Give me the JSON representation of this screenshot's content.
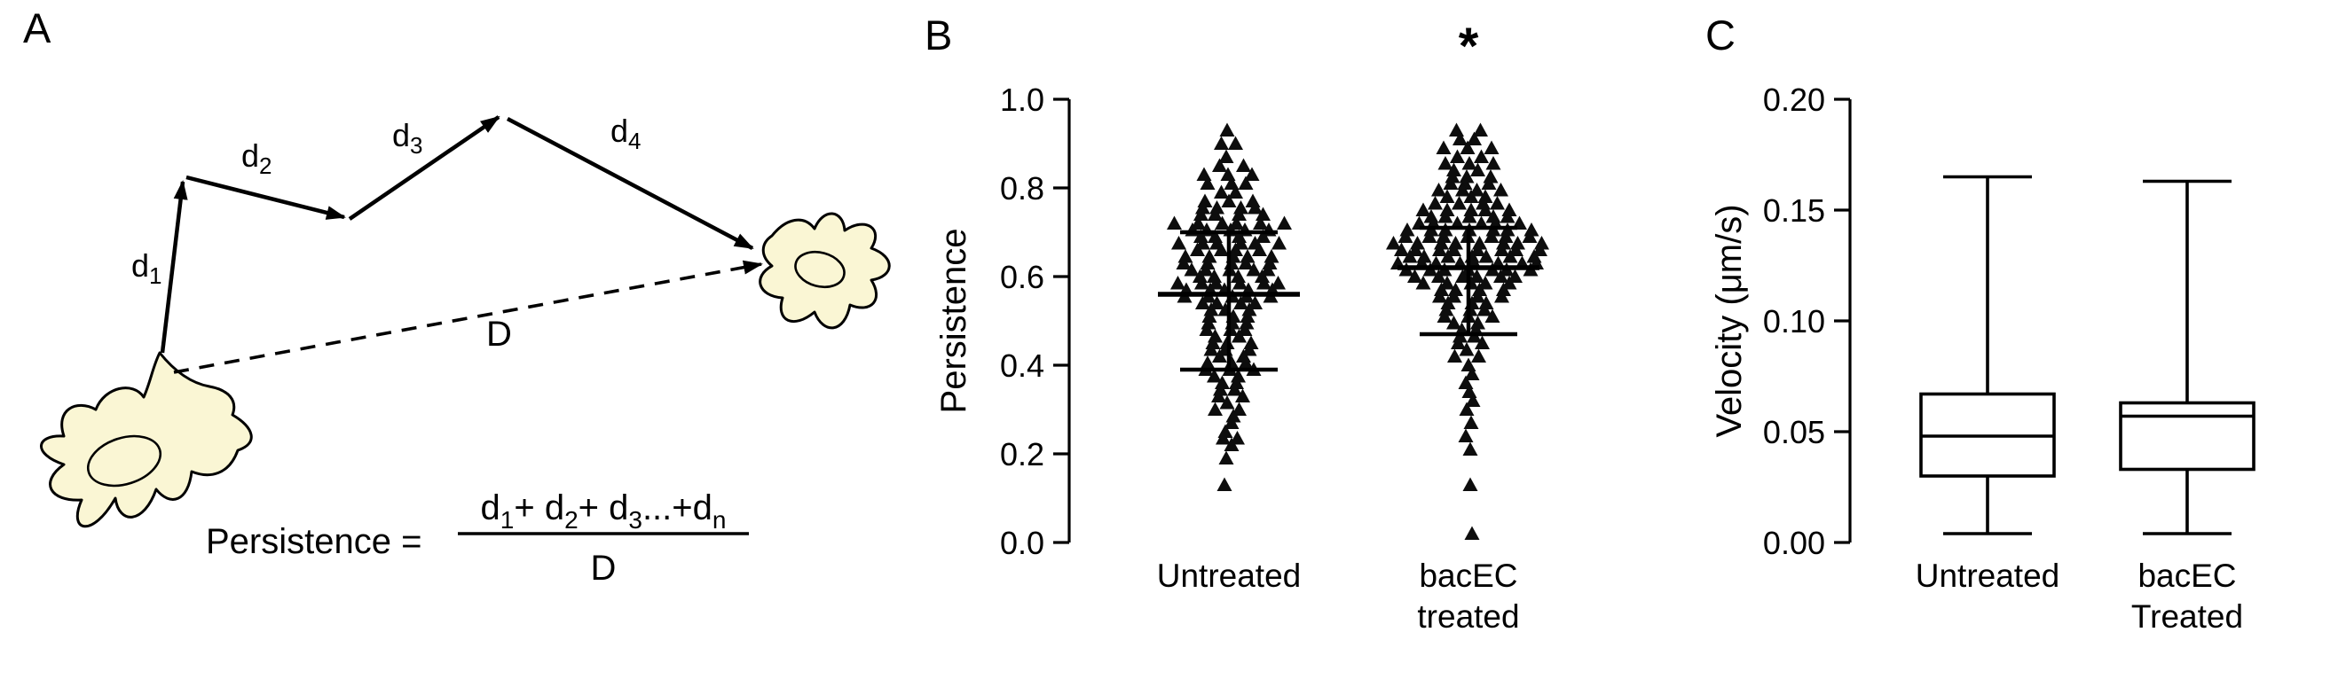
{
  "figure": {
    "background": "#ffffff"
  },
  "panelA": {
    "label": "A",
    "cell_fill": "#FAF6D4",
    "arrows": [
      {
        "base": "d",
        "sub": "1"
      },
      {
        "base": "d",
        "sub": "2"
      },
      {
        "base": "d",
        "sub": "3"
      },
      {
        "base": "d",
        "sub": "4"
      }
    ],
    "dashed_label": "D",
    "formula": {
      "lhs": "Persistence =",
      "n1": "d",
      "s1": "1",
      "n2": "+ d",
      "s2": "2",
      "n3": "+ d",
      "s3": "3",
      "n4": "...+d",
      "s4": "n",
      "denominator": "D"
    }
  },
  "panelB": {
    "label": "B"
  },
  "panelC": {
    "label": "C"
  },
  "chart_data": [
    {
      "type": "scatter",
      "subtype": "beeswarm-column-with-mean-sd",
      "title": "",
      "xlabel": "",
      "ylabel": "Persistence",
      "ylim": [
        0.0,
        1.0
      ],
      "yticks": [
        0.0,
        0.2,
        0.4,
        0.6,
        0.8,
        1.0
      ],
      "ytick_labels": [
        "0.0",
        "0.2",
        "0.4",
        "0.6",
        "0.8",
        "1.0"
      ],
      "marker": "triangle-up",
      "grid": false,
      "groups": [
        {
          "label_lines": [
            "Untreated"
          ],
          "mean": 0.56,
          "sd_low": 0.39,
          "sd_high": 0.7,
          "points_rows": [
            [
              0.93,
              1
            ],
            [
              0.9,
              2
            ],
            [
              0.87,
              1
            ],
            [
              0.85,
              2
            ],
            [
              0.83,
              3
            ],
            [
              0.81,
              3
            ],
            [
              0.79,
              2
            ],
            [
              0.77,
              3
            ],
            [
              0.755,
              4
            ],
            [
              0.74,
              4
            ],
            [
              0.72,
              6
            ],
            [
              0.705,
              5
            ],
            [
              0.69,
              4
            ],
            [
              0.675,
              6
            ],
            [
              0.66,
              4
            ],
            [
              0.645,
              5
            ],
            [
              0.63,
              5
            ],
            [
              0.615,
              5
            ],
            [
              0.6,
              4
            ],
            [
              0.585,
              6
            ],
            [
              0.57,
              5
            ],
            [
              0.555,
              5
            ],
            [
              0.54,
              4
            ],
            [
              0.525,
              3
            ],
            [
              0.51,
              3
            ],
            [
              0.495,
              3
            ],
            [
              0.48,
              3
            ],
            [
              0.465,
              2
            ],
            [
              0.45,
              3
            ],
            [
              0.435,
              3
            ],
            [
              0.42,
              2
            ],
            [
              0.405,
              3
            ],
            [
              0.39,
              3
            ],
            [
              0.375,
              2
            ],
            [
              0.36,
              2
            ],
            [
              0.345,
              2
            ],
            [
              0.33,
              2
            ],
            [
              0.315,
              1
            ],
            [
              0.3,
              2
            ],
            [
              0.285,
              1
            ],
            [
              0.27,
              1
            ],
            [
              0.25,
              1
            ],
            [
              0.235,
              2
            ],
            [
              0.22,
              1
            ],
            [
              0.19,
              1
            ],
            [
              0.13,
              1
            ]
          ]
        },
        {
          "label_lines": [
            "bacEC",
            "treated"
          ],
          "mean": 0.62,
          "sd_low": 0.47,
          "sd_high": 0.71,
          "significance": "*",
          "points_rows": [
            [
              0.93,
              2
            ],
            [
              0.91,
              2
            ],
            [
              0.89,
              3
            ],
            [
              0.87,
              2
            ],
            [
              0.855,
              3
            ],
            [
              0.84,
              2
            ],
            [
              0.825,
              3
            ],
            [
              0.81,
              3
            ],
            [
              0.795,
              4
            ],
            [
              0.78,
              3
            ],
            [
              0.765,
              4
            ],
            [
              0.75,
              5
            ],
            [
              0.735,
              5
            ],
            [
              0.72,
              6
            ],
            [
              0.705,
              7
            ],
            [
              0.69,
              7
            ],
            [
              0.675,
              8
            ],
            [
              0.66,
              8
            ],
            [
              0.645,
              7
            ],
            [
              0.63,
              8
            ],
            [
              0.615,
              7
            ],
            [
              0.6,
              6
            ],
            [
              0.585,
              5
            ],
            [
              0.57,
              4
            ],
            [
              0.555,
              4
            ],
            [
              0.54,
              3
            ],
            [
              0.525,
              3
            ],
            [
              0.51,
              3
            ],
            [
              0.495,
              2
            ],
            [
              0.48,
              2
            ],
            [
              0.465,
              2
            ],
            [
              0.45,
              2
            ],
            [
              0.435,
              1
            ],
            [
              0.42,
              2
            ],
            [
              0.4,
              1
            ],
            [
              0.38,
              1
            ],
            [
              0.36,
              1
            ],
            [
              0.34,
              1
            ],
            [
              0.32,
              1
            ],
            [
              0.3,
              1
            ],
            [
              0.27,
              1
            ],
            [
              0.24,
              1
            ],
            [
              0.21,
              1
            ],
            [
              0.13,
              1
            ],
            [
              0.02,
              1
            ]
          ]
        }
      ]
    },
    {
      "type": "box",
      "title": "",
      "xlabel": "",
      "ylabel": "Velocity (μm/s)",
      "ylim": [
        0.0,
        0.2
      ],
      "yticks": [
        0.0,
        0.05,
        0.1,
        0.15,
        0.2
      ],
      "ytick_labels": [
        "0.00",
        "0.05",
        "0.10",
        "0.15",
        "0.20"
      ],
      "grid": false,
      "groups": [
        {
          "label_lines": [
            "Untreated"
          ],
          "whisker_low": 0.004,
          "q1": 0.03,
          "median": 0.048,
          "q3": 0.067,
          "whisker_high": 0.165
        },
        {
          "label_lines": [
            "bacEC",
            "Treated"
          ],
          "whisker_low": 0.004,
          "q1": 0.033,
          "median": 0.057,
          "q3": 0.063,
          "whisker_high": 0.163
        }
      ]
    }
  ]
}
